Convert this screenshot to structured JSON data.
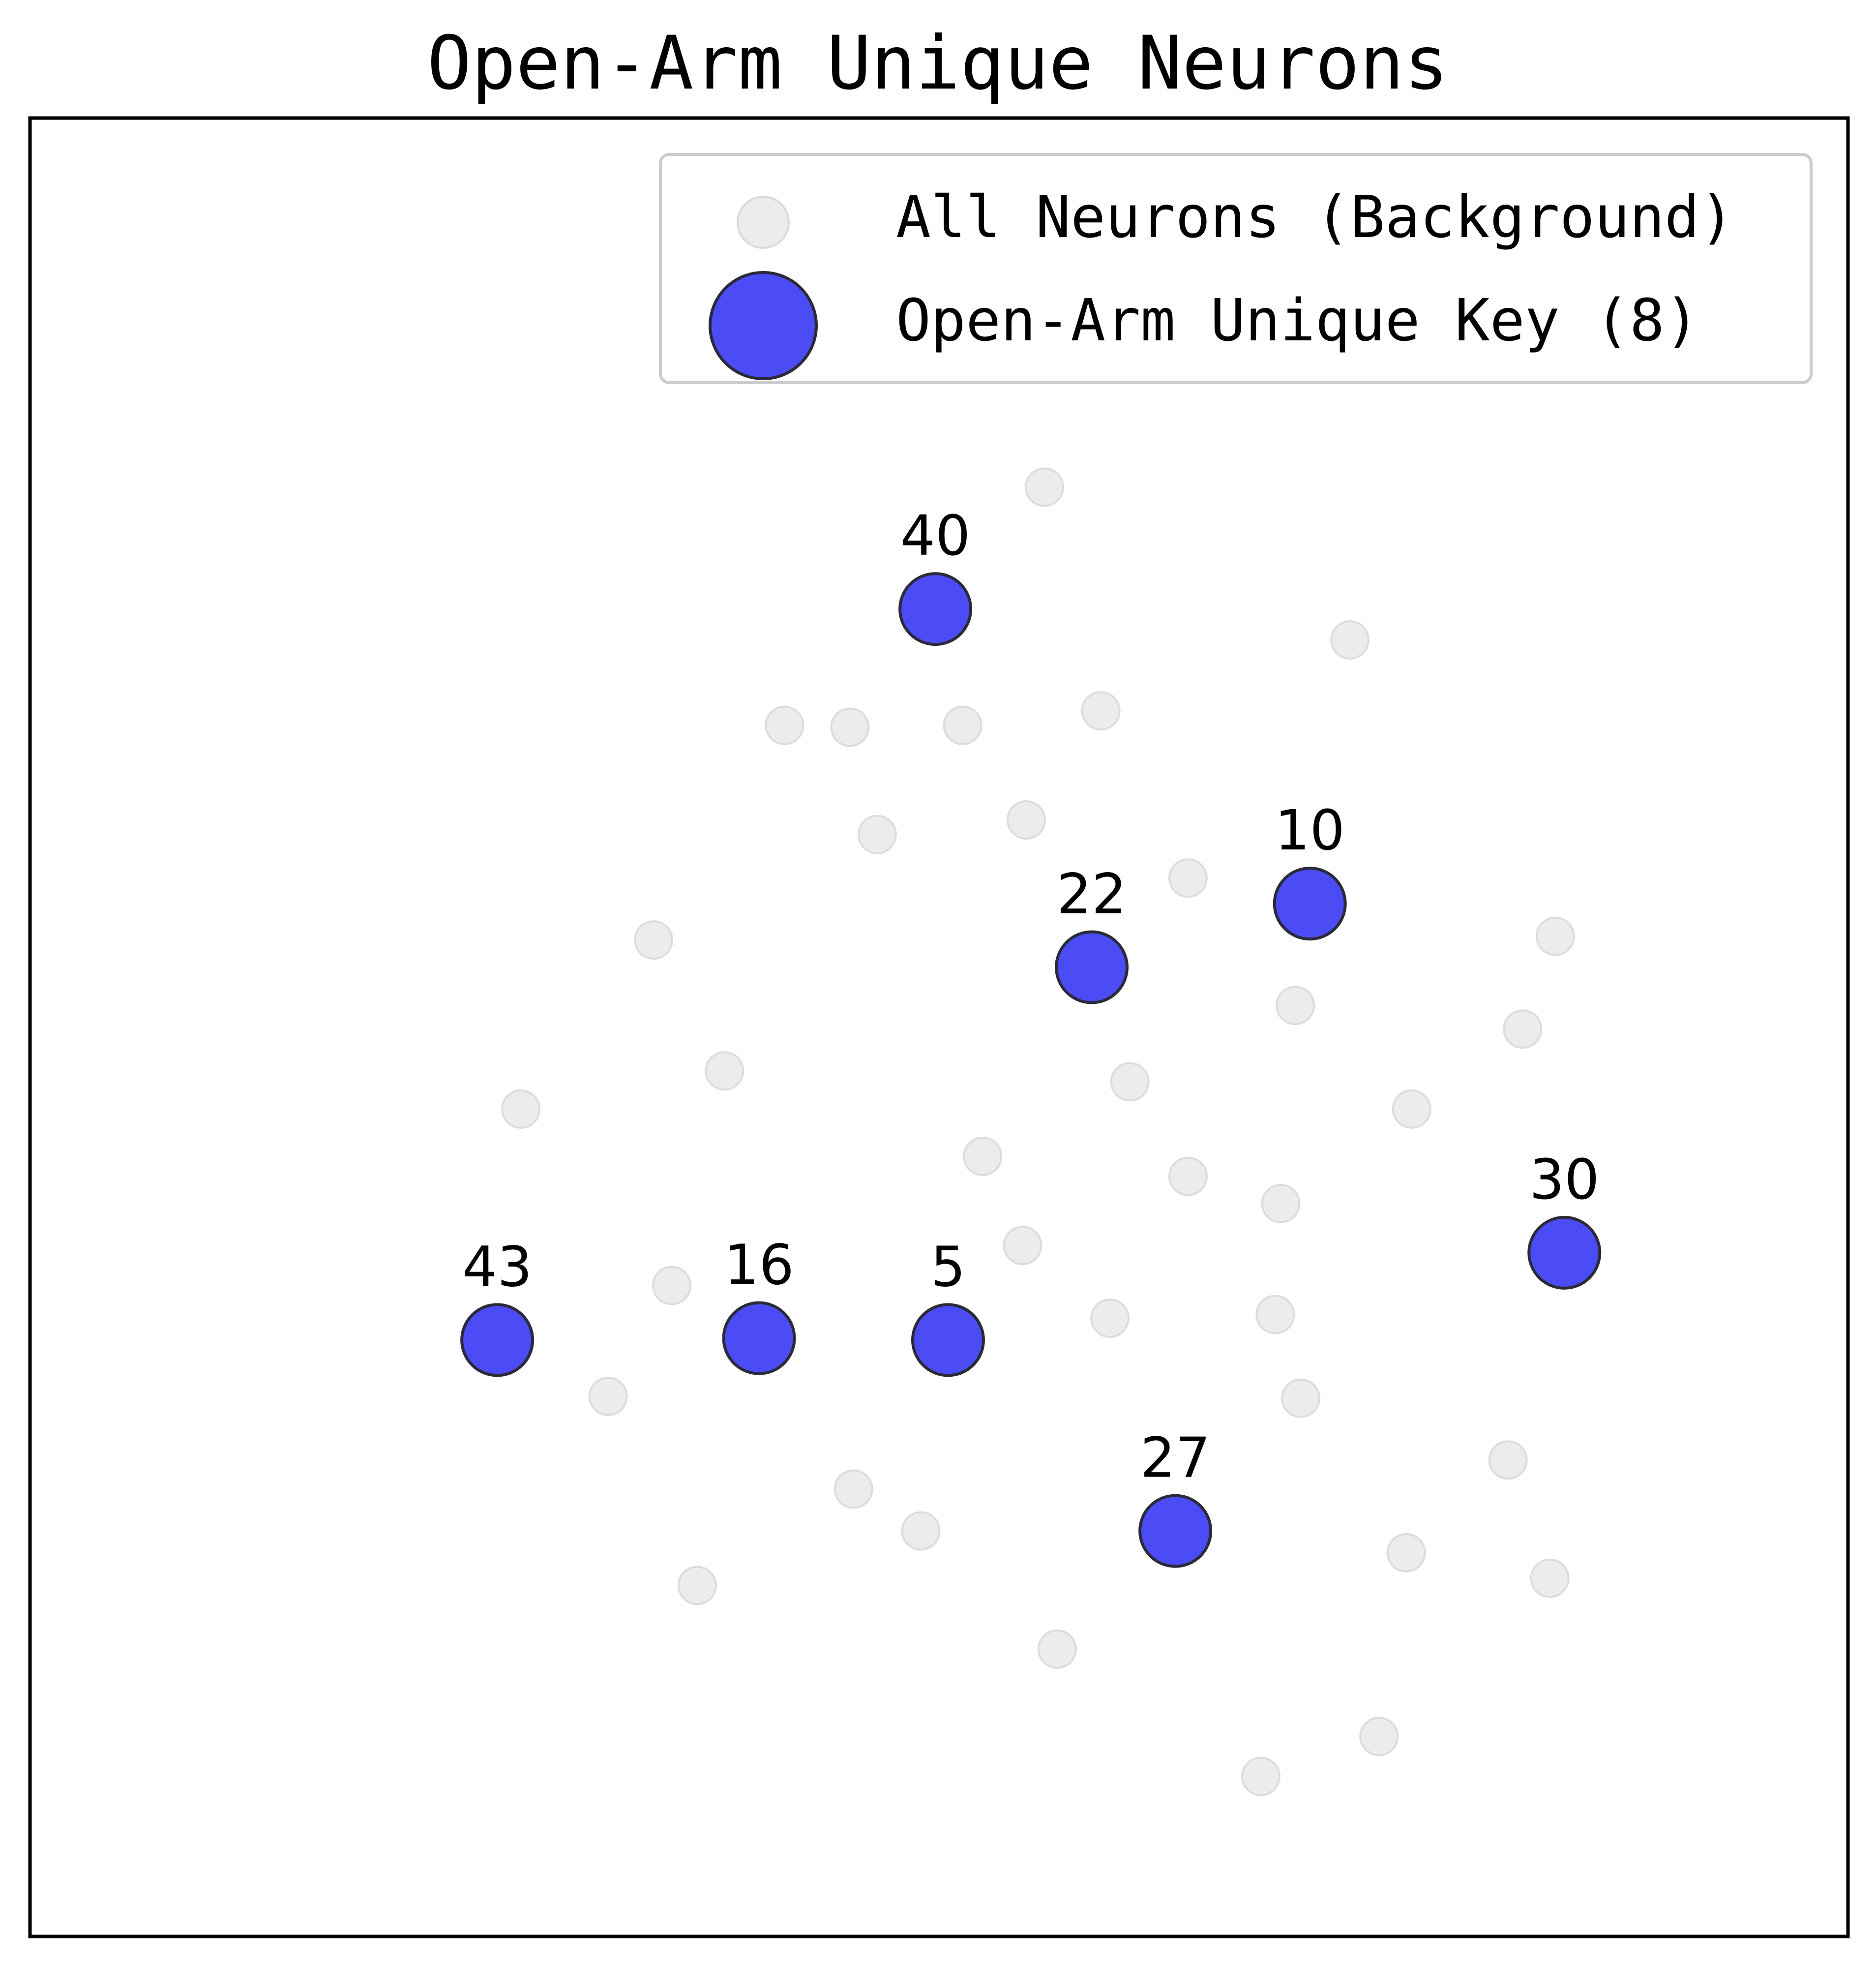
{
  "chart_data": {
    "type": "scatter",
    "title": "Open-Arm Unique Neurons",
    "xlabel": "",
    "ylabel": "",
    "axes_visible": false,
    "grid": false,
    "legend": {
      "placement": "upper-right",
      "entries": [
        {
          "label": "All Neurons (Background)",
          "color": "#e6e6e6"
        },
        {
          "label": "Open-Arm Unique Key (8)",
          "color": "#3d3df5"
        }
      ]
    },
    "series": [
      {
        "name": "All Neurons (Background)",
        "color": "#e6e6e6",
        "points": [
          {
            "x": 0.558,
            "y": 0.797
          },
          {
            "x": 0.415,
            "y": 0.666
          },
          {
            "x": 0.451,
            "y": 0.665
          },
          {
            "x": 0.513,
            "y": 0.666
          },
          {
            "x": 0.589,
            "y": 0.674
          },
          {
            "x": 0.726,
            "y": 0.713
          },
          {
            "x": 0.466,
            "y": 0.606
          },
          {
            "x": 0.548,
            "y": 0.614
          },
          {
            "x": 0.637,
            "y": 0.582
          },
          {
            "x": 0.343,
            "y": 0.548
          },
          {
            "x": 0.839,
            "y": 0.55
          },
          {
            "x": 0.696,
            "y": 0.512
          },
          {
            "x": 0.821,
            "y": 0.499
          },
          {
            "x": 0.382,
            "y": 0.476
          },
          {
            "x": 0.605,
            "y": 0.47
          },
          {
            "x": 0.27,
            "y": 0.455
          },
          {
            "x": 0.76,
            "y": 0.455
          },
          {
            "x": 0.524,
            "y": 0.429
          },
          {
            "x": 0.637,
            "y": 0.418
          },
          {
            "x": 0.688,
            "y": 0.403
          },
          {
            "x": 0.353,
            "y": 0.358
          },
          {
            "x": 0.546,
            "y": 0.38
          },
          {
            "x": 0.594,
            "y": 0.34
          },
          {
            "x": 0.685,
            "y": 0.342
          },
          {
            "x": 0.318,
            "y": 0.297
          },
          {
            "x": 0.699,
            "y": 0.296
          },
          {
            "x": 0.453,
            "y": 0.246
          },
          {
            "x": 0.49,
            "y": 0.223
          },
          {
            "x": 0.813,
            "y": 0.262
          },
          {
            "x": 0.757,
            "y": 0.211
          },
          {
            "x": 0.836,
            "y": 0.197
          },
          {
            "x": 0.367,
            "y": 0.193
          },
          {
            "x": 0.565,
            "y": 0.158
          },
          {
            "x": 0.742,
            "y": 0.11
          },
          {
            "x": 0.677,
            "y": 0.088
          }
        ]
      },
      {
        "name": "Open-Arm Unique Key (8)",
        "color": "#3d3df5",
        "points": [
          {
            "x": 0.498,
            "y": 0.73,
            "label": "40"
          },
          {
            "x": 0.704,
            "y": 0.568,
            "label": "10"
          },
          {
            "x": 0.584,
            "y": 0.533,
            "label": "22"
          },
          {
            "x": 0.844,
            "y": 0.376,
            "label": "30"
          },
          {
            "x": 0.257,
            "y": 0.328,
            "label": "43"
          },
          {
            "x": 0.401,
            "y": 0.329,
            "label": "16"
          },
          {
            "x": 0.505,
            "y": 0.328,
            "label": "5"
          },
          {
            "x": 0.63,
            "y": 0.223,
            "label": "27"
          }
        ]
      }
    ]
  }
}
